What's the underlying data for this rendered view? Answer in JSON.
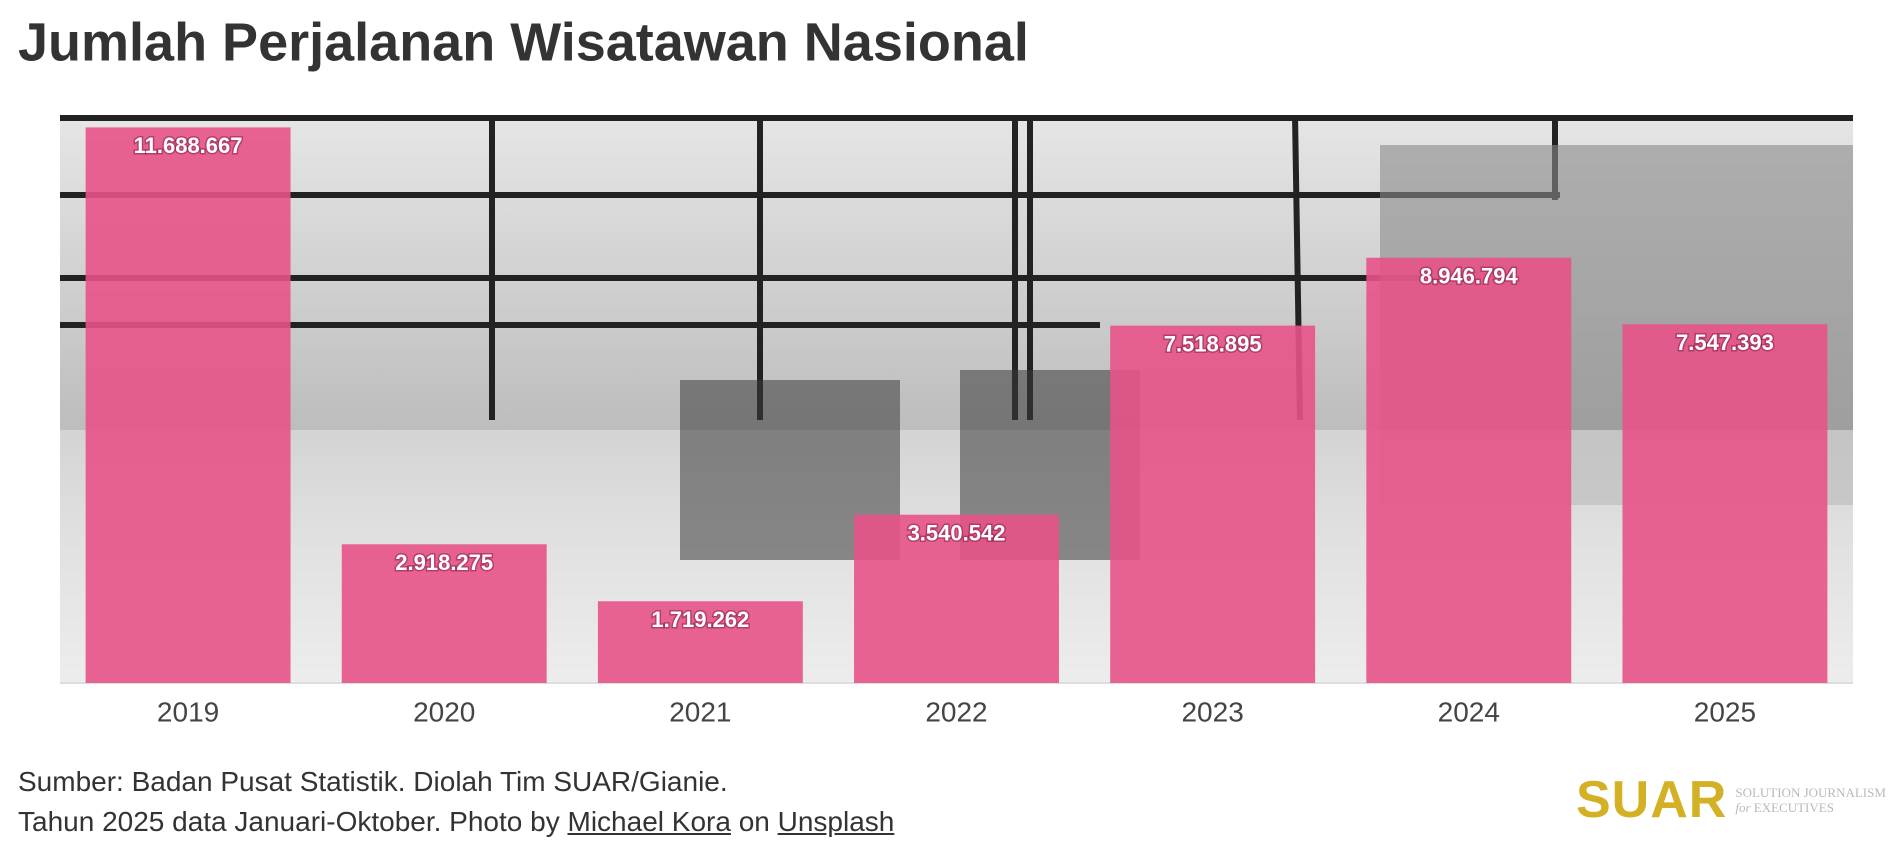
{
  "chart_data": {
    "type": "bar",
    "title": "Jumlah Perjalanan Wisatawan Nasional",
    "categories": [
      "2019",
      "2020",
      "2021",
      "2022",
      "2023",
      "2024",
      "2025"
    ],
    "values": [
      11688667,
      2918275,
      1719262,
      3540542,
      7518895,
      8946794,
      7547393
    ],
    "value_labels": [
      "11.688.667",
      "2.918.275",
      "1.719.262",
      "3.540.542",
      "7.518.895",
      "8.946.794",
      "7.547.393"
    ],
    "color": "#e8528a",
    "ylim": [
      0,
      11950000
    ]
  },
  "footer": {
    "source": "Sumber: Badan Pusat Statistik. Diolah Tim SUAR/Gianie.",
    "note": "Tahun 2025 data Januari-Oktober. Photo by",
    "photographer": "Michael Kora",
    "connector": "on",
    "site": "Unsplash"
  },
  "logo": {
    "name": "SUAR",
    "tagline_top": "SOLUTION JOURNALISM",
    "tagline_for": "for",
    "tagline_bottom": "EXECUTIVES"
  }
}
